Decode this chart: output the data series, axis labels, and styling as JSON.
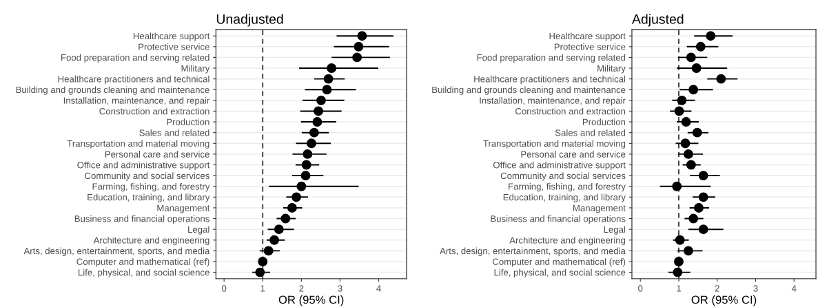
{
  "chart_data": [
    {
      "type": "scatter",
      "orientation": "horizontal",
      "title": "Unadjusted",
      "xlabel": "OR (95% CI)",
      "categories": [
        "Healthcare support",
        "Protective service",
        "Food preparation and serving related",
        "Military",
        "Healthcare practitioners and technical",
        "Building and grounds cleaning and maintenance",
        "Installation, maintenance, and repair",
        "Construction and extraction",
        "Production",
        "Sales and related",
        "Transportation and material moving",
        "Personal care and service",
        "Office and administrative support",
        "Community and social services",
        "Farming, fishing, and forestry",
        "Education, training, and library",
        "Management",
        "Business and financial operations",
        "Legal",
        "Architecture and engineering",
        "Arts, design, entertainment, sports, and media",
        "Computer and mathematical (ref)",
        "Life, physical, and social science"
      ],
      "series": [
        {
          "color": "#000000",
          "values": [
            3.57,
            3.48,
            3.44,
            2.78,
            2.7,
            2.66,
            2.51,
            2.44,
            2.41,
            2.33,
            2.26,
            2.16,
            2.13,
            2.11,
            2.0,
            1.87,
            1.76,
            1.59,
            1.42,
            1.3,
            1.15,
            1.0,
            0.93
          ],
          "errors": [
            [
              2.91,
              4.38
            ],
            [
              2.84,
              4.27
            ],
            [
              2.78,
              4.29
            ],
            [
              1.94,
              3.99
            ],
            [
              2.33,
              3.12
            ],
            [
              2.09,
              3.41
            ],
            [
              2.03,
              3.11
            ],
            [
              1.97,
              3.04
            ],
            [
              1.99,
              2.9
            ],
            [
              2.01,
              2.71
            ],
            [
              1.86,
              2.76
            ],
            [
              1.77,
              2.65
            ],
            [
              1.85,
              2.46
            ],
            [
              1.76,
              2.57
            ],
            [
              1.16,
              3.48
            ],
            [
              1.61,
              2.17
            ],
            [
              1.53,
              2.02
            ],
            [
              1.36,
              1.85
            ],
            [
              1.13,
              1.81
            ],
            [
              1.1,
              1.57
            ],
            [
              0.92,
              1.44
            ],
            null,
            [
              0.73,
              1.19
            ]
          ]
        }
      ],
      "xlim": [
        -0.21,
        4.72
      ],
      "xticks": [
        0,
        1,
        2,
        3,
        4
      ],
      "ref_lines": [
        {
          "axis": "x",
          "value": 1,
          "color": "#333333",
          "line_style": "dashed"
        }
      ],
      "grid": "y",
      "marker": "circle"
    },
    {
      "type": "scatter",
      "orientation": "horizontal",
      "title": "Adjusted",
      "xlabel": "OR (95% CI)",
      "categories": [
        "Healthcare support",
        "Protective service",
        "Food preparation and serving related",
        "Military",
        "Healthcare practitioners and technical",
        "Building and grounds cleaning and maintenance",
        "Installation, maintenance, and repair",
        "Construction and extraction",
        "Production",
        "Sales and related",
        "Transportation and material moving",
        "Personal care and service",
        "Office and administrative support",
        "Community and social services",
        "Farming, fishing, and forestry",
        "Education, training, and library",
        "Management",
        "Business and financial operations",
        "Legal",
        "Architecture and engineering",
        "Arts, design, entertainment, sports, and media",
        "Computer and mathematical (ref)",
        "Life, physical, and social science"
      ],
      "series": [
        {
          "color": "#000000",
          "values": [
            1.83,
            1.57,
            1.32,
            1.46,
            2.1,
            1.38,
            1.08,
            1.01,
            1.19,
            1.48,
            1.17,
            1.25,
            1.32,
            1.64,
            0.95,
            1.64,
            1.52,
            1.38,
            1.64,
            1.03,
            1.25,
            1.0,
            0.97
          ],
          "errors": [
            [
              1.4,
              2.4
            ],
            [
              1.21,
              2.03
            ],
            [
              0.98,
              1.74
            ],
            [
              0.95,
              2.26
            ],
            [
              1.74,
              2.53
            ],
            [
              1.02,
              1.89
            ],
            [
              0.83,
              1.42
            ],
            [
              0.77,
              1.33
            ],
            [
              0.95,
              1.52
            ],
            [
              1.23,
              1.77
            ],
            [
              0.92,
              1.51
            ],
            [
              0.98,
              1.63
            ],
            [
              1.1,
              1.57
            ],
            [
              1.29,
              2.07
            ],
            [
              0.51,
              1.83
            ],
            [
              1.36,
              1.95
            ],
            [
              1.28,
              1.79
            ],
            [
              1.15,
              1.64
            ],
            [
              1.25,
              2.16
            ],
            [
              0.85,
              1.26
            ],
            [
              0.96,
              1.62
            ],
            null,
            [
              0.73,
              1.3
            ]
          ]
        }
      ],
      "xlim": [
        -0.22,
        4.57
      ],
      "xticks": [
        0,
        1,
        2,
        3,
        4
      ],
      "ref_lines": [
        {
          "axis": "x",
          "value": 1,
          "color": "#333333",
          "line_style": "dashed"
        }
      ],
      "grid": "y",
      "marker": "circle"
    }
  ]
}
